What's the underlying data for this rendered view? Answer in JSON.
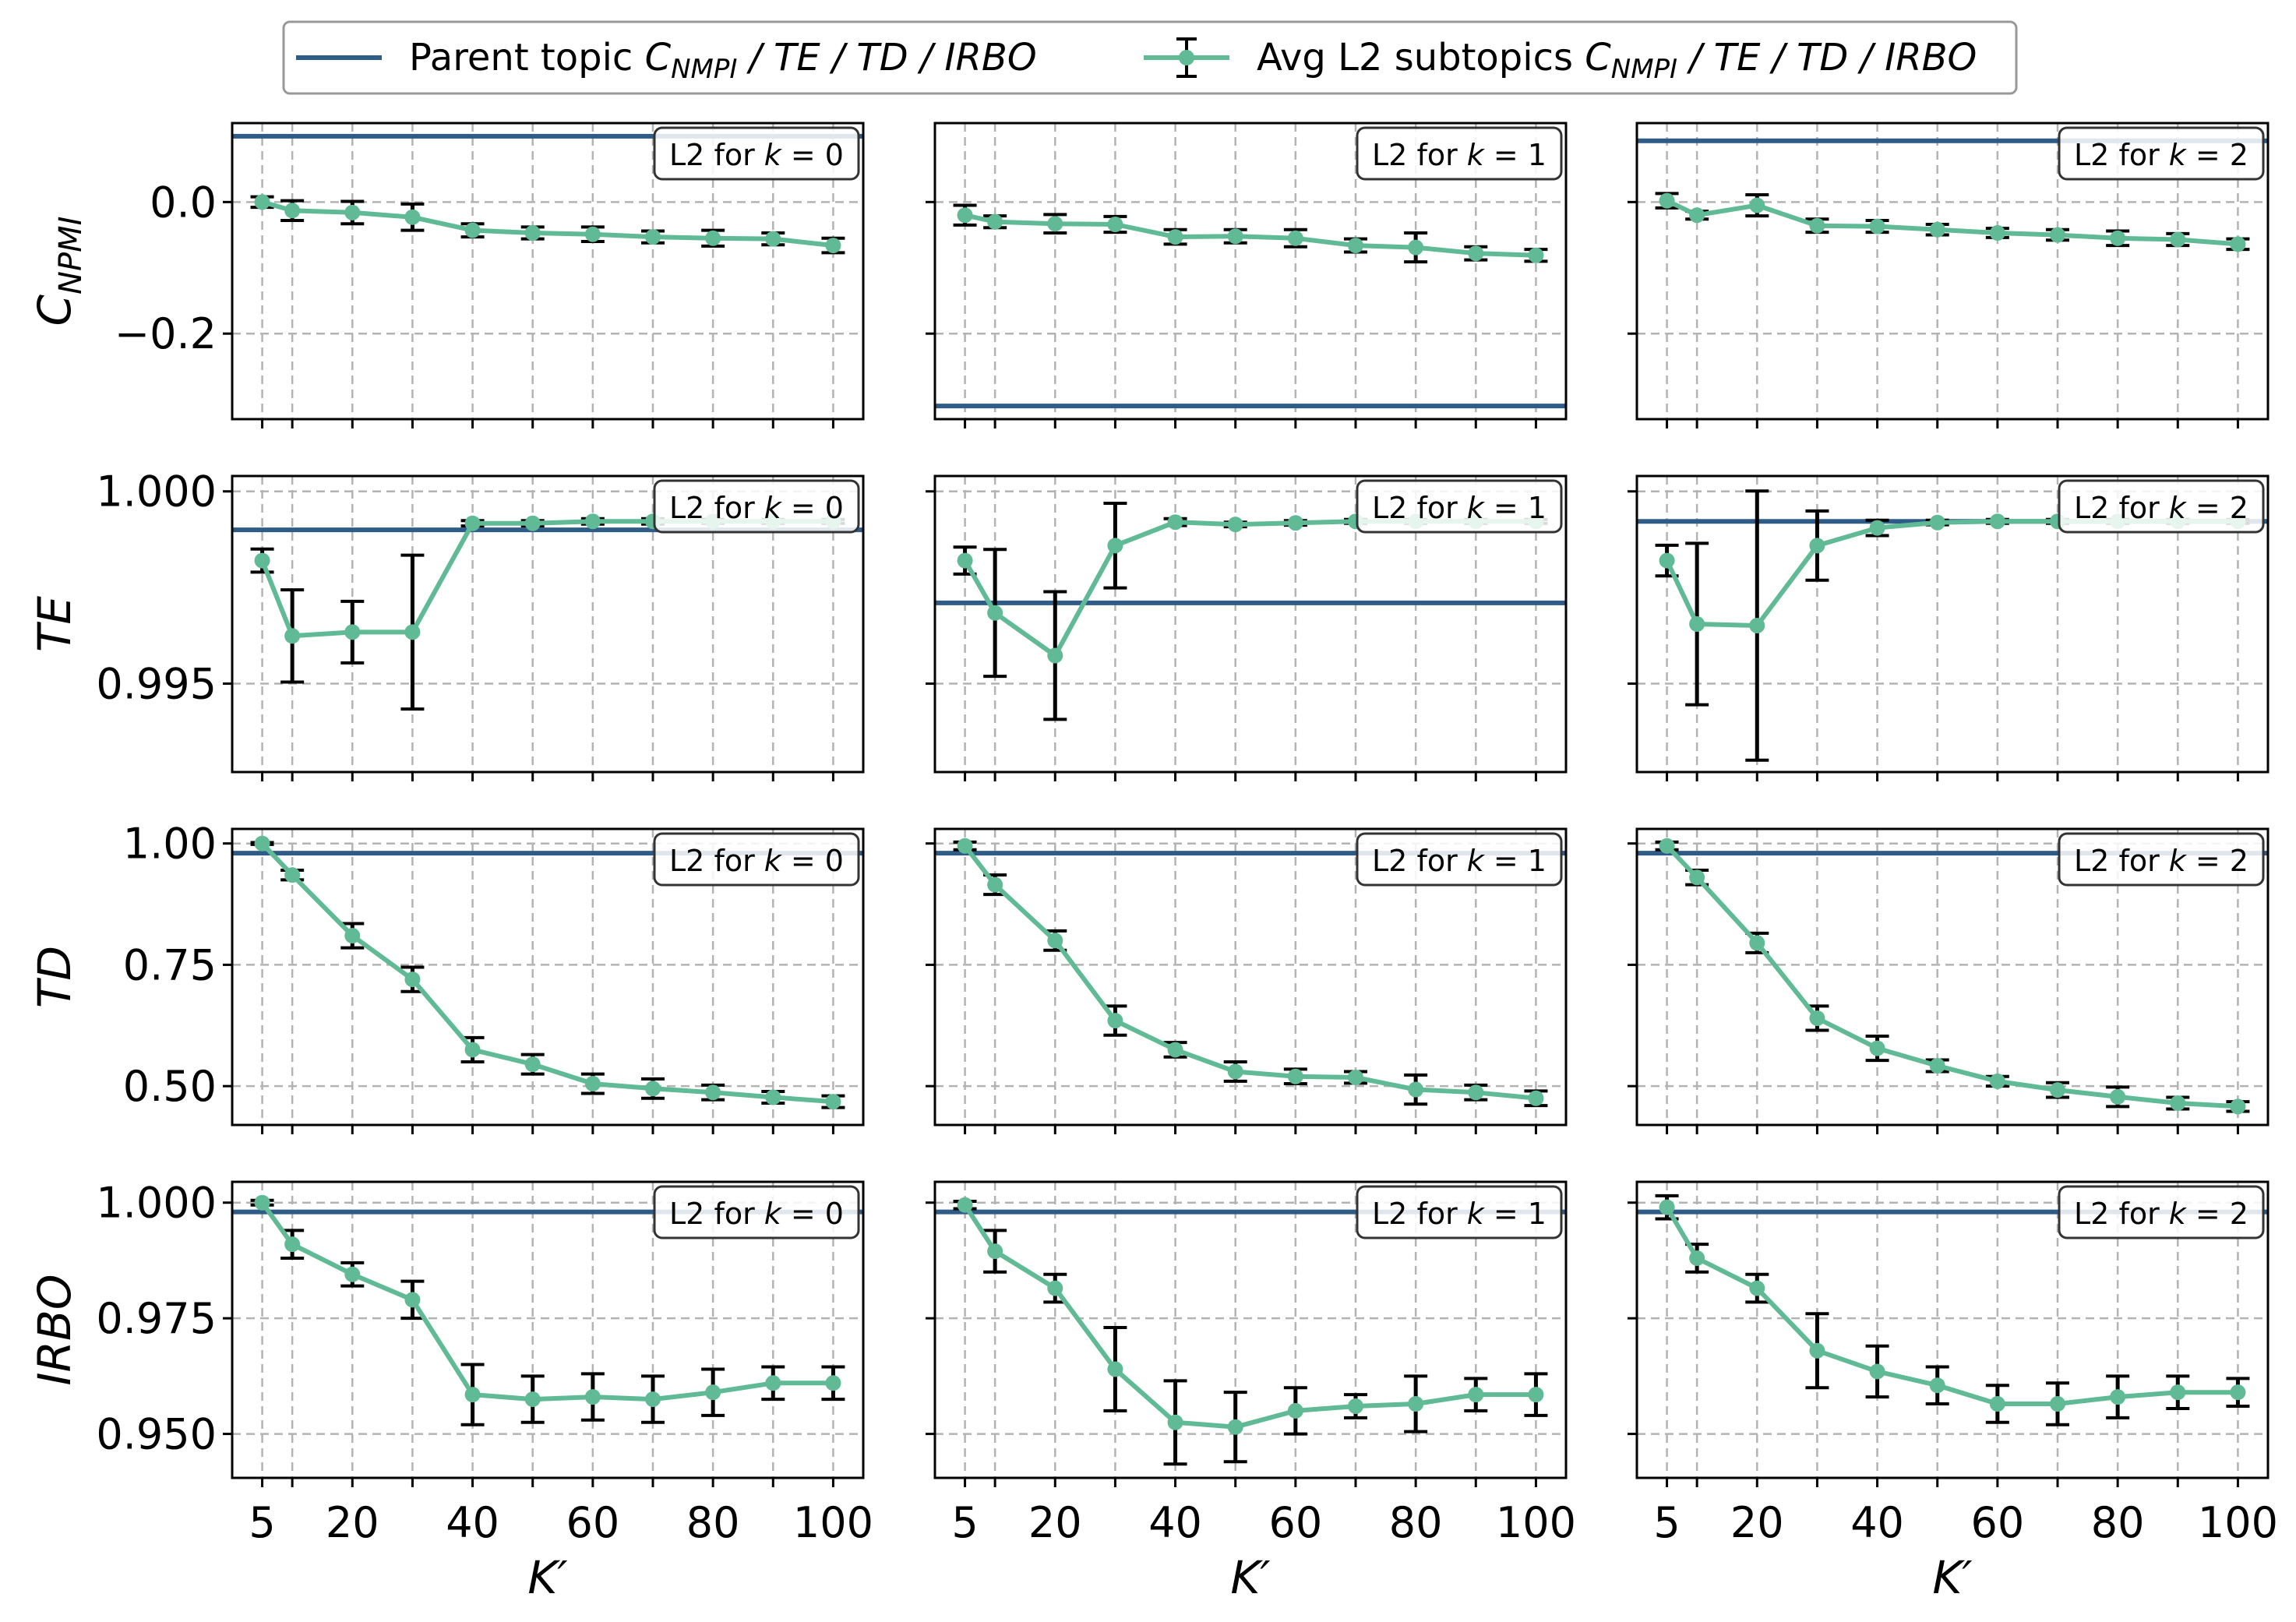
{
  "legend": {
    "parent_label_prefix": "Parent topic ",
    "avg_label_prefix": "Avg L2 subtopics ",
    "metric_symbol": "C",
    "metric_subscript": "NMPI",
    "metric_suffix": " / TE / TD / IRBO",
    "position": "top-center"
  },
  "colors": {
    "parent": "#2f5b87",
    "subtopics": "#5fba95",
    "errorbar": "#000000",
    "grid": "#b3b3b3",
    "badge_border": "#333333"
  },
  "panel_badge": {
    "prefix": "L2 for ",
    "variable": "k",
    "separator": " = "
  },
  "axes": {
    "x_title": "K′",
    "x_ticks": [
      5,
      20,
      40,
      60,
      80,
      100
    ],
    "x_grid": [
      5,
      10,
      20,
      30,
      40,
      50,
      60,
      70,
      80,
      90,
      100
    ],
    "row_titles": [
      {
        "symbol": "C",
        "subscript": "NPMI"
      },
      {
        "symbol": "TE",
        "subscript": ""
      },
      {
        "symbol": "TD",
        "subscript": ""
      },
      {
        "symbol": "IRBO",
        "subscript": ""
      }
    ],
    "grid": true
  },
  "chart_data": [
    {
      "type": "line",
      "metric": "C_NPMI",
      "panel": "L2 for k = 0",
      "x": [
        5,
        10,
        20,
        30,
        40,
        50,
        60,
        70,
        80,
        90,
        100
      ],
      "ylim": [
        -0.33,
        0.12
      ],
      "y_ticks": [
        0.0,
        -0.2
      ],
      "y_tick_labels": [
        "0.0",
        "−0.2"
      ],
      "parent": 0.1,
      "mean": [
        0.0,
        -0.013,
        -0.016,
        -0.023,
        -0.043,
        -0.047,
        -0.049,
        -0.053,
        -0.055,
        -0.056,
        -0.066
      ],
      "err": [
        0.008,
        0.015,
        0.017,
        0.02,
        0.01,
        0.009,
        0.011,
        0.009,
        0.012,
        0.009,
        0.011
      ]
    },
    {
      "type": "line",
      "metric": "C_NPMI",
      "panel": "L2 for k = 1",
      "x": [
        5,
        10,
        20,
        30,
        40,
        50,
        60,
        70,
        80,
        90,
        100
      ],
      "ylim": [
        -0.33,
        0.12
      ],
      "y_ticks": [
        0.0,
        -0.2
      ],
      "y_tick_labels": [
        "",
        ""
      ],
      "parent": -0.31,
      "mean": [
        -0.02,
        -0.03,
        -0.033,
        -0.034,
        -0.053,
        -0.052,
        -0.055,
        -0.066,
        -0.069,
        -0.078,
        -0.081
      ],
      "err": [
        0.015,
        0.009,
        0.014,
        0.012,
        0.011,
        0.01,
        0.013,
        0.01,
        0.022,
        0.01,
        0.009
      ]
    },
    {
      "type": "line",
      "metric": "C_NPMI",
      "panel": "L2 for k = 2",
      "x": [
        5,
        10,
        20,
        30,
        40,
        50,
        60,
        70,
        80,
        90,
        100
      ],
      "ylim": [
        -0.33,
        0.12
      ],
      "y_ticks": [
        0.0,
        -0.2
      ],
      "y_tick_labels": [
        "",
        ""
      ],
      "parent": 0.093,
      "mean": [
        0.002,
        -0.02,
        -0.005,
        -0.036,
        -0.037,
        -0.042,
        -0.047,
        -0.05,
        -0.055,
        -0.057,
        -0.064
      ],
      "err": [
        0.011,
        0.006,
        0.016,
        0.01,
        0.009,
        0.008,
        0.007,
        0.008,
        0.011,
        0.009,
        0.008
      ]
    },
    {
      "type": "line",
      "metric": "TE",
      "panel": "L2 for k = 0",
      "x": [
        5,
        10,
        20,
        30,
        40,
        50,
        60,
        70,
        80,
        90,
        100
      ],
      "ylim": [
        0.9927,
        1.0004
      ],
      "y_ticks": [
        1.0,
        0.995
      ],
      "y_tick_labels": [
        "1.000",
        "0.995"
      ],
      "parent": 0.999,
      "mean": [
        0.9982,
        0.99624,
        0.99634,
        0.99634,
        0.99917,
        0.99917,
        0.99922,
        0.99922,
        0.99922,
        0.99922,
        0.99922
      ],
      "err": [
        0.0003,
        0.0012,
        0.0008,
        0.002,
        7e-05,
        7e-05,
        7e-05,
        7e-05,
        5e-05,
        5e-05,
        5e-05
      ]
    },
    {
      "type": "line",
      "metric": "TE",
      "panel": "L2 for k = 1",
      "x": [
        5,
        10,
        20,
        30,
        40,
        50,
        60,
        70,
        80,
        90,
        100
      ],
      "ylim": [
        0.9927,
        1.0004
      ],
      "y_ticks": [
        1.0,
        0.995
      ],
      "y_tick_labels": [
        "",
        ""
      ],
      "parent": 0.9971,
      "mean": [
        0.9982,
        0.99684,
        0.99573,
        0.99859,
        0.9992,
        0.99914,
        0.99918,
        0.99922,
        0.99922,
        0.99922,
        0.99922
      ],
      "err": [
        0.00035,
        0.00165,
        0.00166,
        0.0011,
        9e-05,
        6e-05,
        6e-05,
        5e-05,
        5e-05,
        5e-05,
        5e-05
      ]
    },
    {
      "type": "line",
      "metric": "TE",
      "panel": "L2 for k = 2",
      "x": [
        5,
        10,
        20,
        30,
        40,
        50,
        60,
        70,
        80,
        90,
        100
      ],
      "ylim": [
        0.9927,
        1.0004
      ],
      "y_ticks": [
        1.0,
        0.995
      ],
      "y_tick_labels": [
        "",
        ""
      ],
      "parent": 0.99922,
      "mean": [
        0.9982,
        0.99655,
        0.99651,
        0.99859,
        0.99905,
        0.99919,
        0.99922,
        0.99922,
        0.99922,
        0.99922,
        0.99922
      ],
      "err": [
        0.0004,
        0.0021,
        0.0035,
        0.0009,
        0.0002,
        6e-05,
        5e-05,
        5e-05,
        5e-05,
        5e-05,
        5e-05
      ]
    },
    {
      "type": "line",
      "metric": "TD",
      "panel": "L2 for k = 0",
      "x": [
        5,
        10,
        20,
        30,
        40,
        50,
        60,
        70,
        80,
        90,
        100
      ],
      "ylim": [
        0.42,
        1.03
      ],
      "y_ticks": [
        1.0,
        0.75,
        0.5
      ],
      "y_tick_labels": [
        "1.00",
        "0.75",
        "0.50"
      ],
      "parent": 0.98,
      "mean": [
        1.0,
        0.935,
        0.81,
        0.72,
        0.575,
        0.545,
        0.505,
        0.495,
        0.487,
        0.477,
        0.468
      ],
      "err": [
        0.002,
        0.01,
        0.025,
        0.025,
        0.025,
        0.02,
        0.02,
        0.02,
        0.015,
        0.012,
        0.012
      ]
    },
    {
      "type": "line",
      "metric": "TD",
      "panel": "L2 for k = 1",
      "x": [
        5,
        10,
        20,
        30,
        40,
        50,
        60,
        70,
        80,
        90,
        100
      ],
      "ylim": [
        0.42,
        1.03
      ],
      "y_ticks": [
        1.0,
        0.75,
        0.5
      ],
      "y_tick_labels": [
        "",
        "",
        ""
      ],
      "parent": 0.98,
      "mean": [
        0.995,
        0.915,
        0.8,
        0.635,
        0.575,
        0.53,
        0.52,
        0.518,
        0.493,
        0.487,
        0.475
      ],
      "err": [
        0.008,
        0.02,
        0.02,
        0.03,
        0.015,
        0.02,
        0.015,
        0.012,
        0.03,
        0.015,
        0.015
      ]
    },
    {
      "type": "line",
      "metric": "TD",
      "panel": "L2 for k = 2",
      "x": [
        5,
        10,
        20,
        30,
        40,
        50,
        60,
        70,
        80,
        90,
        100
      ],
      "ylim": [
        0.42,
        1.03
      ],
      "y_ticks": [
        1.0,
        0.75,
        0.5
      ],
      "y_tick_labels": [
        "",
        "",
        ""
      ],
      "parent": 0.98,
      "mean": [
        0.995,
        0.93,
        0.795,
        0.64,
        0.578,
        0.542,
        0.51,
        0.492,
        0.478,
        0.465,
        0.458
      ],
      "err": [
        0.008,
        0.015,
        0.02,
        0.025,
        0.025,
        0.012,
        0.01,
        0.015,
        0.02,
        0.012,
        0.01
      ]
    },
    {
      "type": "line",
      "metric": "IRBO",
      "panel": "L2 for k = 0",
      "x": [
        5,
        10,
        20,
        30,
        40,
        50,
        60,
        70,
        80,
        90,
        100
      ],
      "ylim": [
        0.9405,
        1.0045
      ],
      "y_ticks": [
        1.0,
        0.975,
        0.95
      ],
      "y_tick_labels": [
        "1.000",
        "0.975",
        "0.950"
      ],
      "parent": 0.998,
      "mean": [
        1.0,
        0.991,
        0.9845,
        0.979,
        0.9585,
        0.9575,
        0.958,
        0.9575,
        0.959,
        0.961,
        0.961
      ],
      "err": [
        0.0005,
        0.003,
        0.0025,
        0.004,
        0.0065,
        0.005,
        0.005,
        0.005,
        0.005,
        0.0035,
        0.0035
      ]
    },
    {
      "type": "line",
      "metric": "IRBO",
      "panel": "L2 for k = 1",
      "x": [
        5,
        10,
        20,
        30,
        40,
        50,
        60,
        70,
        80,
        90,
        100
      ],
      "ylim": [
        0.9405,
        1.0045
      ],
      "y_ticks": [
        1.0,
        0.975,
        0.95
      ],
      "y_tick_labels": [
        "",
        "",
        ""
      ],
      "parent": 0.998,
      "mean": [
        0.9995,
        0.9895,
        0.9815,
        0.964,
        0.9525,
        0.9515,
        0.955,
        0.956,
        0.9565,
        0.9585,
        0.9585
      ],
      "err": [
        0.0008,
        0.0045,
        0.003,
        0.009,
        0.009,
        0.0075,
        0.005,
        0.0025,
        0.006,
        0.0035,
        0.0045
      ]
    },
    {
      "type": "line",
      "metric": "IRBO",
      "panel": "L2 for k = 2",
      "x": [
        5,
        10,
        20,
        30,
        40,
        50,
        60,
        70,
        80,
        90,
        100
      ],
      "ylim": [
        0.9405,
        1.0045
      ],
      "y_ticks": [
        1.0,
        0.975,
        0.95
      ],
      "y_tick_labels": [
        "",
        "",
        ""
      ],
      "parent": 0.998,
      "mean": [
        0.999,
        0.988,
        0.9815,
        0.968,
        0.9635,
        0.9605,
        0.9565,
        0.9565,
        0.958,
        0.959,
        0.959
      ],
      "err": [
        0.0025,
        0.003,
        0.003,
        0.008,
        0.0055,
        0.004,
        0.004,
        0.0045,
        0.0045,
        0.0035,
        0.003
      ]
    }
  ]
}
